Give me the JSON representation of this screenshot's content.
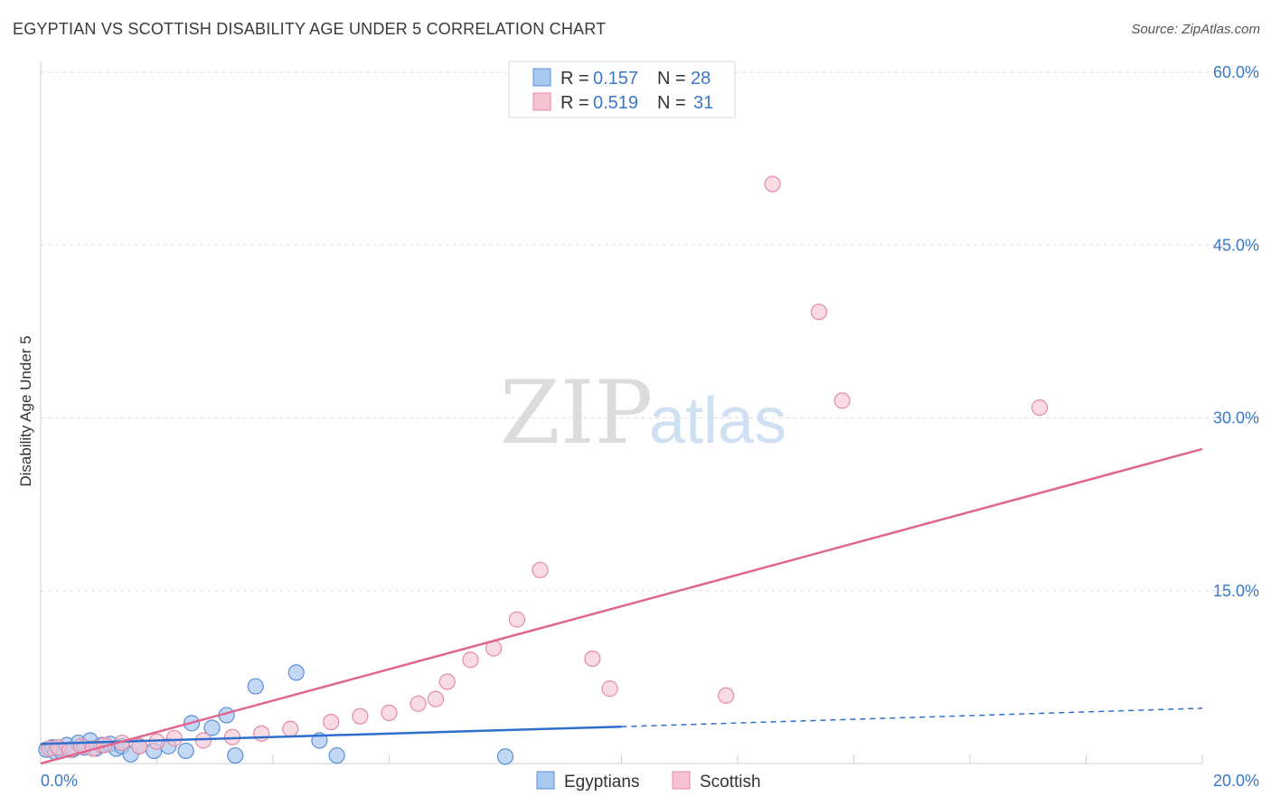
{
  "header": {
    "title": "EGYPTIAN VS SCOTTISH DISABILITY AGE UNDER 5 CORRELATION CHART",
    "source": "Source: ZipAtlas.com"
  },
  "watermark": {
    "zip": "ZIP",
    "atlas": "atlas"
  },
  "legend_box": {
    "rows": [
      {
        "r_label": "R = ",
        "r_value": "0.157",
        "n_label": "N = ",
        "n_value": "28",
        "color": "#a9c8f0"
      },
      {
        "r_label": "R = ",
        "r_value": "0.519",
        "n_label": "N = ",
        "n_value": "31",
        "color": "#f5b8cb"
      }
    ]
  },
  "colors": {
    "blue_fill": "#a9c8f0",
    "blue_stroke": "#5b8fd6",
    "blue_line": "#2f6fcc",
    "pink_fill": "#f5c3d2",
    "pink_stroke": "#e58aa6",
    "pink_line": "#e0668f",
    "grid": "#dddddd",
    "tick_text": "#3b78c8"
  },
  "chart_data": {
    "type": "scatter",
    "title": "EGYPTIAN VS SCOTTISH DISABILITY AGE UNDER 5 CORRELATION CHART",
    "xlabel": "",
    "ylabel": "Disability Age Under 5",
    "xlim": [
      0,
      20
    ],
    "ylim": [
      0,
      60
    ],
    "x_tick_labels": [
      "0.0%",
      "20.0%"
    ],
    "y_ticks": [
      15,
      30,
      45,
      60
    ],
    "y_tick_labels": [
      "15.0%",
      "30.0%",
      "45.0%",
      "60.0%"
    ],
    "legend": [
      "Egyptians",
      "Scottish"
    ],
    "series": [
      {
        "name": "Egyptians",
        "r": 0.157,
        "n": 28,
        "points": [
          [
            0.1,
            1.2
          ],
          [
            0.2,
            1.4
          ],
          [
            0.25,
            1.0
          ],
          [
            0.35,
            1.1
          ],
          [
            0.45,
            1.6
          ],
          [
            0.55,
            1.2
          ],
          [
            0.65,
            1.8
          ],
          [
            0.75,
            1.4
          ],
          [
            0.85,
            2.0
          ],
          [
            0.95,
            1.3
          ],
          [
            1.05,
            1.6
          ],
          [
            1.2,
            1.7
          ],
          [
            1.3,
            1.3
          ],
          [
            1.4,
            1.5
          ],
          [
            1.55,
            0.8
          ],
          [
            1.7,
            1.5
          ],
          [
            1.95,
            1.1
          ],
          [
            2.2,
            1.5
          ],
          [
            2.5,
            1.1
          ],
          [
            2.6,
            3.5
          ],
          [
            2.95,
            3.1
          ],
          [
            3.2,
            4.2
          ],
          [
            3.35,
            0.7
          ],
          [
            3.7,
            6.7
          ],
          [
            4.4,
            7.9
          ],
          [
            4.8,
            2.0
          ],
          [
            5.1,
            0.7
          ],
          [
            8.0,
            0.6
          ]
        ],
        "trend": {
          "x0": 0,
          "y0": 1.7,
          "x1": 10.0,
          "y1": 3.2,
          "dash_to_x": 20,
          "dash_to_y": 4.8
        }
      },
      {
        "name": "Scottish",
        "r": 0.519,
        "n": 31,
        "points": [
          [
            0.15,
            1.3
          ],
          [
            0.3,
            1.4
          ],
          [
            0.5,
            1.2
          ],
          [
            0.7,
            1.5
          ],
          [
            0.9,
            1.3
          ],
          [
            1.1,
            1.6
          ],
          [
            1.4,
            1.8
          ],
          [
            1.7,
            1.5
          ],
          [
            2.0,
            1.9
          ],
          [
            2.3,
            2.2
          ],
          [
            2.8,
            2.0
          ],
          [
            3.3,
            2.3
          ],
          [
            3.8,
            2.6
          ],
          [
            4.3,
            3.0
          ],
          [
            5.0,
            3.6
          ],
          [
            5.5,
            4.1
          ],
          [
            6.0,
            4.4
          ],
          [
            6.5,
            5.2
          ],
          [
            6.8,
            5.6
          ],
          [
            7.0,
            7.1
          ],
          [
            7.4,
            9.0
          ],
          [
            7.8,
            10.0
          ],
          [
            8.2,
            12.5
          ],
          [
            8.6,
            16.8
          ],
          [
            9.5,
            9.1
          ],
          [
            9.8,
            6.5
          ],
          [
            11.8,
            5.9
          ],
          [
            12.6,
            50.3
          ],
          [
            13.4,
            39.2
          ],
          [
            13.8,
            31.5
          ],
          [
            17.2,
            30.9
          ]
        ],
        "trend": {
          "x0": 0,
          "y0": 0.0,
          "x1": 20,
          "y1": 27.3
        }
      }
    ]
  },
  "bottom_legend": {
    "blue_label": "Egyptians",
    "pink_label": "Scottish"
  }
}
